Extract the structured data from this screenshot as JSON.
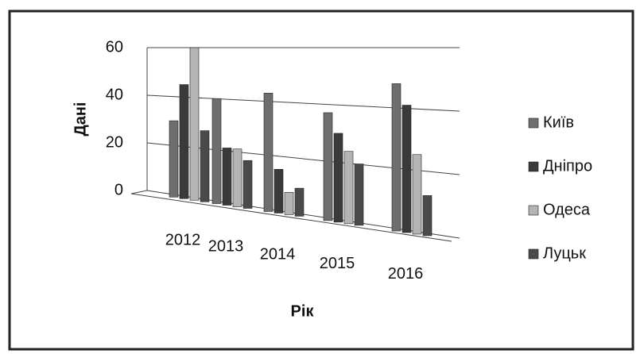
{
  "chart_data": {
    "type": "bar",
    "x_label": "Рік",
    "y_label": "Дані",
    "categories": [
      "2012",
      "2013",
      "2014",
      "2015",
      "2016"
    ],
    "series": [
      {
        "name": "Київ",
        "color": "#6e6e6e",
        "values": [
          30,
          40,
          43,
          37,
          48
        ]
      },
      {
        "name": "Дніпро",
        "color": "#3a3a3a",
        "values": [
          45,
          21,
          15,
          30,
          41
        ]
      },
      {
        "name": "Одеса",
        "color": "#b4b4b4",
        "values": [
          60,
          21,
          7,
          24,
          25
        ]
      },
      {
        "name": "Луцьк",
        "color": "#4a4a4a",
        "values": [
          27,
          17,
          9,
          20,
          12
        ]
      }
    ],
    "ylim": [
      0,
      60
    ],
    "yticks": [
      0,
      20,
      40,
      60
    ],
    "grid": true,
    "legend": "right"
  }
}
